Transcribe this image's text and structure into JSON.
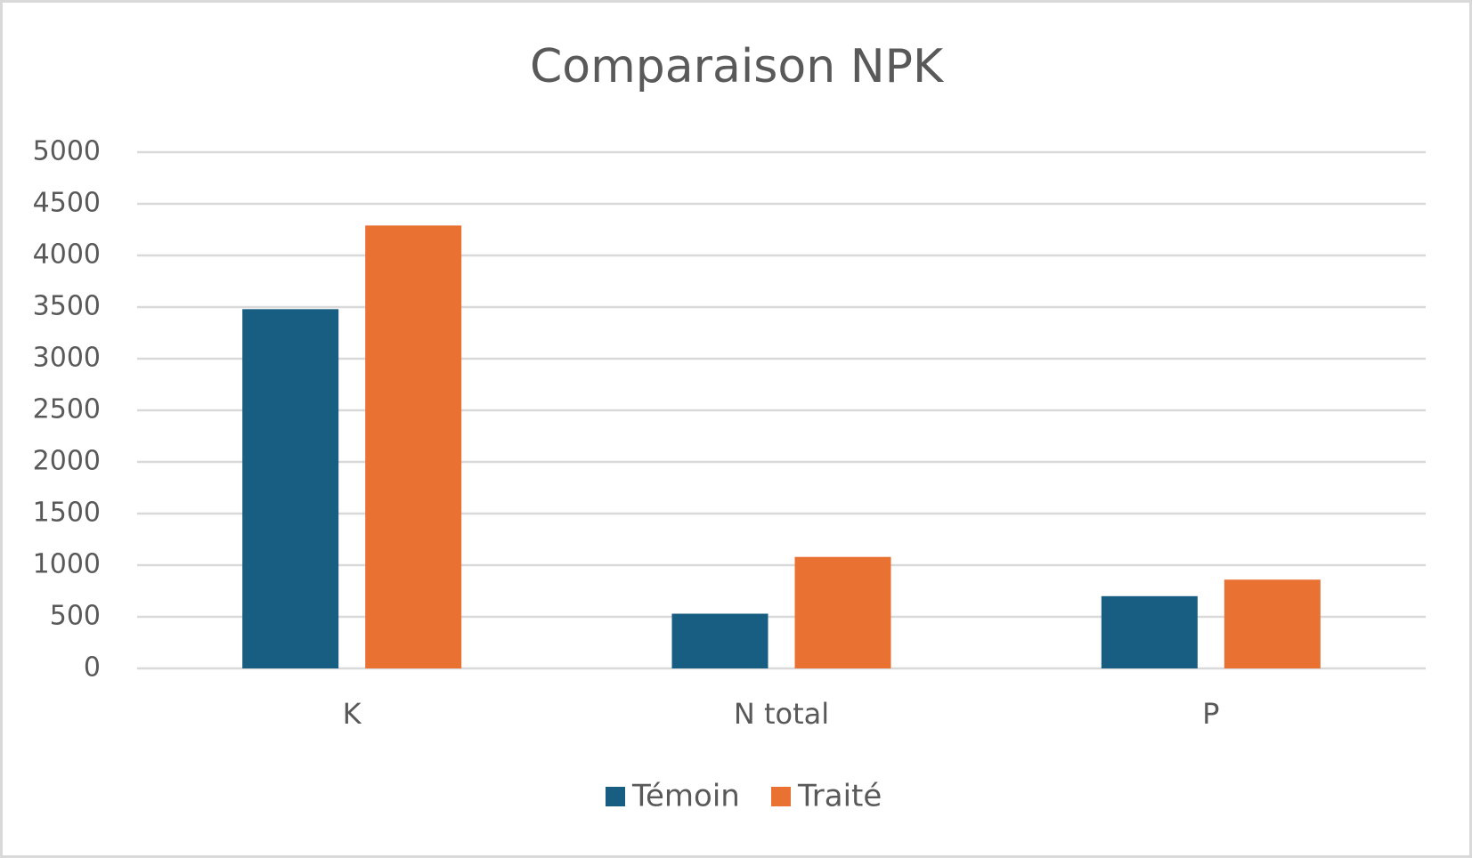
{
  "chart_data": {
    "type": "bar",
    "title": "Comparaison NPK",
    "categories": [
      "K",
      "N total",
      "P"
    ],
    "series": [
      {
        "name": "Témoin",
        "color": "#175e82",
        "values": [
          3480,
          530,
          700
        ]
      },
      {
        "name": "Traité",
        "color": "#e97132",
        "values": [
          4290,
          1080,
          860
        ]
      }
    ],
    "ylim": [
      0,
      5000
    ],
    "yticks": [
      0,
      500,
      1000,
      1500,
      2000,
      2500,
      3000,
      3500,
      4000,
      4500,
      5000
    ],
    "grid": true,
    "legend": "bottom"
  }
}
